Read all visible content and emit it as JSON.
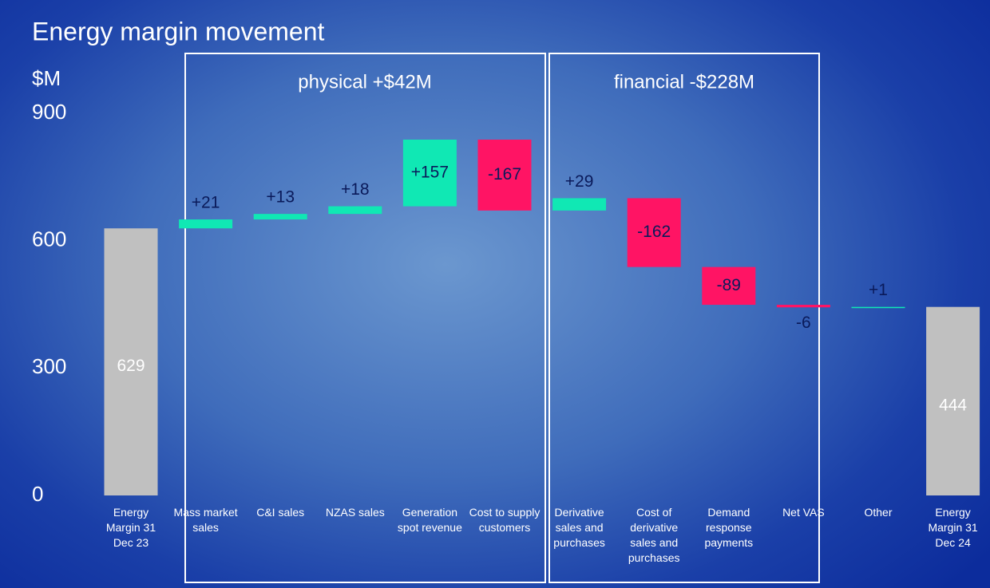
{
  "chart_data": {
    "type": "waterfall",
    "title": "Energy margin movement",
    "y_label": "$M",
    "categories": [
      "Energy Margin 31 Dec 23",
      "Mass market sales",
      "C&I sales",
      "NZAS sales",
      "Generation spot revenue",
      "Cost to supply customers",
      "Derivative sales and purchases",
      "Cost of derivative sales and purchases",
      "Demand response payments",
      "Net VAS",
      "Other",
      "Energy Margin 31 Dec 24"
    ],
    "values": [
      629,
      21,
      13,
      18,
      157,
      -167,
      29,
      -162,
      -89,
      -6,
      1,
      444
    ],
    "value_labels": [
      "629",
      "+21",
      "+13",
      "+18",
      "+157",
      "-167",
      "+29",
      "-162",
      "-89",
      "-6",
      "+1",
      "444"
    ],
    "measures": [
      "total",
      "relative",
      "relative",
      "relative",
      "relative",
      "relative",
      "relative",
      "relative",
      "relative",
      "relative",
      "relative",
      "total"
    ],
    "colors": {
      "total": "#c0c0c0",
      "increase": "#10e8b4",
      "decrease": "#ff1464"
    },
    "annotations": [
      "physical +$42M",
      "financial -$228M"
    ],
    "ylim": [
      0,
      900
    ],
    "yticks": [
      0,
      300,
      600,
      900
    ],
    "grid": false
  }
}
